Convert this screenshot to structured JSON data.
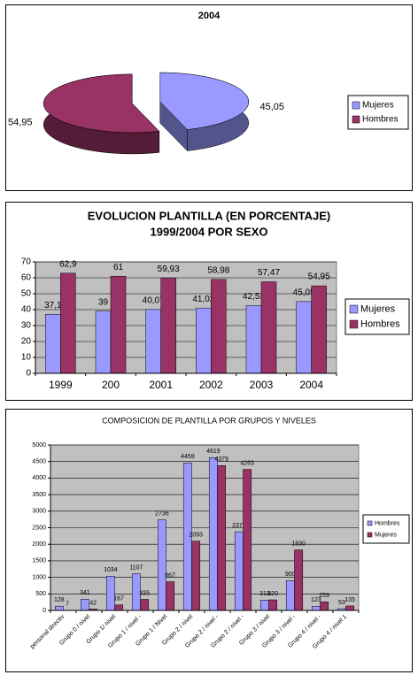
{
  "chart_data": [
    {
      "type": "pie",
      "title": "2004",
      "categories": [
        "Mujeres",
        "Hombres"
      ],
      "values": [
        45.05,
        54.95
      ],
      "value_labels": [
        "45,05",
        "54,95"
      ],
      "colors": [
        "#9999ff",
        "#993366"
      ],
      "legend": "right"
    },
    {
      "type": "bar",
      "title": [
        "EVOLUCION PLANTILLA (EN PORCENTAJE)",
        "1999/2004 POR SEXO"
      ],
      "categories": [
        "1999",
        "200",
        "2001",
        "2002",
        "2003",
        "2004"
      ],
      "series": [
        {
          "name": "Mujeres",
          "color": "#9999ff",
          "values": [
            37.1,
            39,
            40.07,
            41.02,
            42.53,
            45.05
          ],
          "value_labels": [
            "37,1",
            "39",
            "40,07",
            "41,02",
            "42,53",
            "45,05"
          ]
        },
        {
          "name": "Hombres",
          "color": "#993366",
          "values": [
            62.9,
            61,
            59.93,
            58.98,
            57.47,
            54.95
          ],
          "value_labels": [
            "62,9",
            "61",
            "59,93",
            "58,98",
            "57,47",
            "54,95"
          ]
        }
      ],
      "ylim": [
        0,
        70
      ],
      "yticks": [
        0,
        10,
        20,
        30,
        40,
        50,
        60,
        70
      ],
      "grid": true,
      "legend": "right"
    },
    {
      "type": "bar",
      "title": "COMPOSICION DE PLANTILLA POR GRUPOS Y NIVELES",
      "categories": [
        "personal directiv",
        "Grupo 0 / nivel",
        "Grupo 1/ nivel",
        "Grupo 1 / nivel -",
        "Grupo 1 / Nivel",
        "Grupo 2 / nivel",
        "Grupo 2 / nivel -",
        "Grupo 2 / nivel -",
        "Grupo 3 / nivel",
        "Grupo 3 / nivel -",
        "Grupo 4 / nivel -",
        "Grupo 4 / nivel 1"
      ],
      "series": [
        {
          "name": "Hombres",
          "color": "#9999ff",
          "values": [
            128,
            341,
            1034,
            1107,
            2736,
            4459,
            4619,
            2377,
            313,
            900,
            123,
            53
          ]
        },
        {
          "name": "Mujeres",
          "color": "#993366",
          "values": [
            7,
            42,
            167,
            335,
            867,
            2093,
            4379,
            4263,
            320,
            1830,
            259,
            135
          ]
        }
      ],
      "ylim": [
        0,
        5000
      ],
      "yticks": [
        0,
        500,
        1000,
        1500,
        2000,
        2500,
        3000,
        3500,
        4000,
        4500,
        5000
      ],
      "grid": true,
      "legend": "right"
    }
  ]
}
